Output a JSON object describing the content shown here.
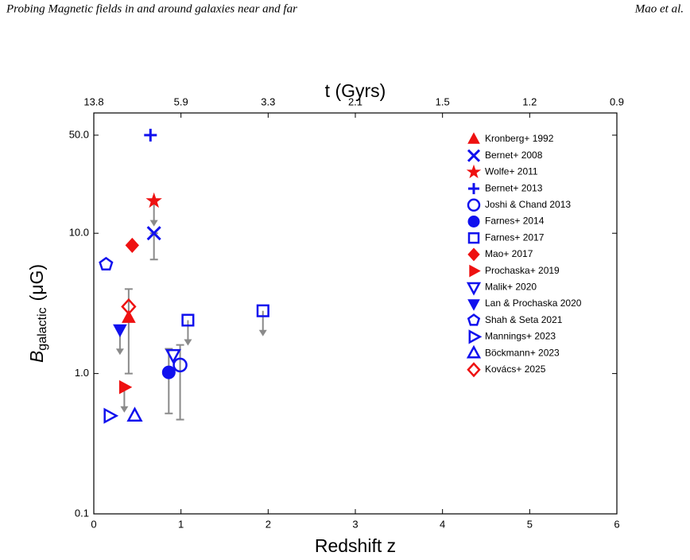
{
  "header": {
    "title": "Probing Magnetic fields in and around galaxies near and far",
    "authors": "Mao et al."
  },
  "chart_data": {
    "type": "scatter",
    "xlabel": "Redshift z",
    "ylabel": [
      "B",
      "galactic",
      "(μG)"
    ],
    "x2label": "t (Gyrs)",
    "xlim": [
      0,
      6
    ],
    "xticks": [
      0,
      1,
      2,
      3,
      4,
      5,
      6
    ],
    "x2ticks": [
      {
        "value": 0,
        "label": "13.8"
      },
      {
        "value": 1,
        "label": "5.9"
      },
      {
        "value": 2,
        "label": "3.3"
      },
      {
        "value": 3,
        "label": "2.1"
      },
      {
        "value": 4,
        "label": "1.5"
      },
      {
        "value": 5,
        "label": "1.2"
      },
      {
        "value": 6,
        "label": "0.9"
      }
    ],
    "ylim": [
      0.1,
      72
    ],
    "log_y": true,
    "yticks": [
      {
        "value": 0.1,
        "label": "0.1"
      },
      {
        "value": 1,
        "label": "1.0"
      },
      {
        "value": 10,
        "label": "10.0"
      },
      {
        "value": 50,
        "label": "50.0"
      }
    ],
    "legend": "upper right",
    "series": [
      {
        "name": "Kronberg+ 1992",
        "color": "#ee1111",
        "marker": "triangle-up",
        "filled": true,
        "x": [
          0.4
        ],
        "values": [
          2.5
        ]
      },
      {
        "name": "Bernet+ 2008",
        "color": "#1111ee",
        "marker": "x",
        "filled": true,
        "x": [
          0.69
        ],
        "values": [
          10
        ],
        "ranges": [
          [
            6.5,
            10
          ]
        ]
      },
      {
        "name": "Wolfe+ 2011",
        "color": "#ee1111",
        "marker": "star",
        "filled": true,
        "x": [
          0.69
        ],
        "values": [
          17
        ],
        "upper_limits": [
          true
        ]
      },
      {
        "name": "Bernet+ 2013",
        "color": "#1111ee",
        "marker": "plus",
        "filled": true,
        "x": [
          0.65
        ],
        "values": [
          50
        ]
      },
      {
        "name": "Joshi & Chand 2013",
        "color": "#1111ee",
        "marker": "circle",
        "filled": false,
        "x": [
          0.99
        ],
        "values": [
          1.15
        ],
        "ranges": [
          [
            0.47,
            1.6
          ]
        ]
      },
      {
        "name": "Farnes+ 2014",
        "color": "#1111ee",
        "marker": "circle",
        "filled": true,
        "x": [
          0.86
        ],
        "values": [
          1.02
        ],
        "ranges": [
          [
            0.52,
            1.5
          ]
        ]
      },
      {
        "name": "Farnes+ 2017",
        "color": "#1111ee",
        "marker": "square",
        "filled": false,
        "x": [
          1.08,
          1.94
        ],
        "values": [
          2.4,
          2.8
        ],
        "upper_limits": [
          true,
          true
        ]
      },
      {
        "name": "Mao+ 2017",
        "color": "#ee1111",
        "marker": "diamond",
        "filled": true,
        "x": [
          0.44
        ],
        "values": [
          8.2
        ]
      },
      {
        "name": "Prochaska+ 2019",
        "color": "#ee1111",
        "marker": "triangle-right",
        "filled": true,
        "x": [
          0.35
        ],
        "values": [
          0.8
        ],
        "upper_limits": [
          true
        ]
      },
      {
        "name": "Malik+ 2020",
        "color": "#1111ee",
        "marker": "triangle-down",
        "filled": false,
        "x": [
          0.91
        ],
        "values": [
          1.36
        ]
      },
      {
        "name": "Lan & Prochaska 2020",
        "color": "#1111ee",
        "marker": "triangle-down",
        "filled": true,
        "x": [
          0.3
        ],
        "values": [
          2.06
        ],
        "upper_limits": [
          true
        ]
      },
      {
        "name": "Shah & Seta 2021",
        "color": "#1111ee",
        "marker": "pentagon",
        "filled": false,
        "x": [
          0.14
        ],
        "values": [
          6.0
        ]
      },
      {
        "name": "Mannings+ 2023",
        "color": "#1111ee",
        "marker": "triangle-right",
        "filled": false,
        "x": [
          0.18
        ],
        "values": [
          0.5
        ]
      },
      {
        "name": "Böckmann+ 2023",
        "color": "#1111ee",
        "marker": "triangle-up",
        "filled": false,
        "x": [
          0.47
        ],
        "values": [
          0.5
        ]
      },
      {
        "name": "Kovács+ 2025",
        "color": "#ee1111",
        "marker": "diamond",
        "filled": false,
        "x": [
          0.4
        ],
        "values": [
          3.0
        ],
        "ranges": [
          [
            1.0,
            4.0
          ]
        ]
      }
    ]
  }
}
